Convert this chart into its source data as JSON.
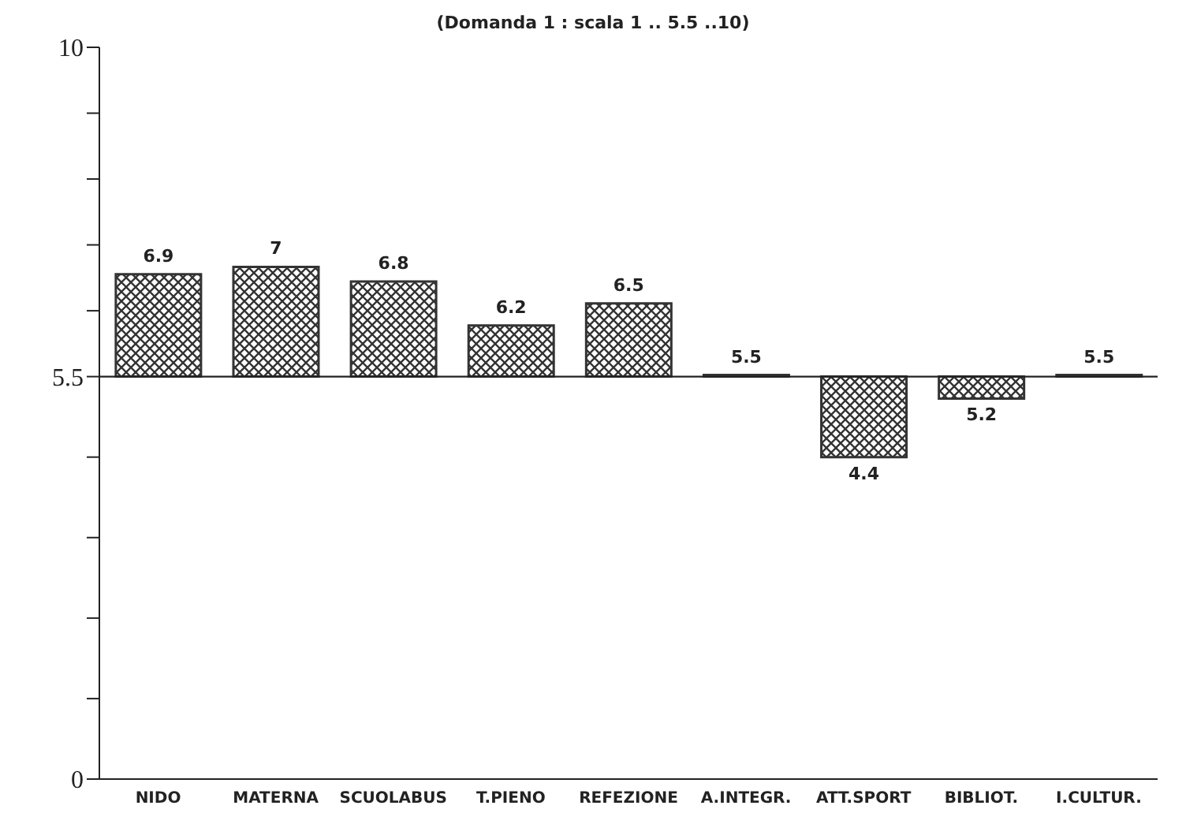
{
  "chart_data": {
    "type": "bar",
    "title": "(Domanda 1 : scala 1 .. 5.5 ..10)",
    "categories": [
      "NIDO",
      "MATERNA",
      "SCUOLABUS",
      "T.PIENO",
      "REFEZIONE",
      "A.INTEGR.",
      "ATT.SPORT",
      "BIBLIOT.",
      "I.CULTUR."
    ],
    "base": [
      5.5,
      5.5,
      5.5,
      5.5,
      5.5,
      5.5,
      5.5,
      5.5,
      5.5
    ],
    "values": [
      1.4,
      1.5,
      1.3,
      0.7,
      1.0,
      0,
      -1.1,
      -0.3,
      0
    ],
    "value_labels": [
      "6.9",
      "7",
      "6.8",
      "6.2",
      "6.5",
      "5.5",
      "4.4",
      "5.2",
      "5.5"
    ],
    "color": "#333333",
    "ylim": [
      0,
      10
    ],
    "yticks": [
      0,
      {
        "value": 1.1,
        "label": null
      },
      {
        "value": 2.2,
        "label": null
      },
      {
        "value": 3.3,
        "label": null
      },
      {
        "value": 4.4,
        "label": null
      },
      {
        "value": 5.5,
        "label": "5.5"
      },
      {
        "value": 6.4,
        "label": null
      },
      {
        "value": 7.3,
        "label": null
      },
      {
        "value": 8.2,
        "label": null
      },
      {
        "value": 9.1,
        "label": null
      },
      10
    ],
    "ref_lines": [
      {
        "axis": "y",
        "value": 5.5,
        "label": null,
        "color": "#222222"
      }
    ],
    "legend": false
  }
}
